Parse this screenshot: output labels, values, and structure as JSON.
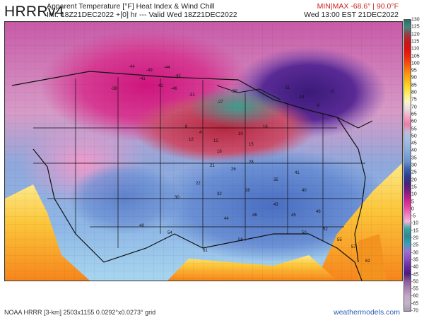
{
  "header": {
    "brand": "HRRRv4",
    "title_line1": "Apparent Temperature [°F] Heat Index & Wind Chill",
    "title_line2": "Init: 18Z21DEC2022 +[0] hr --- Valid Wed 18Z21DEC2022",
    "minmax": "MIN|MAX -68.6° | 90.0°F",
    "valid_local": "Wed 13:00 EST 21DEC2022"
  },
  "colorbar": {
    "ticks": [
      "130",
      "125",
      "120",
      "115",
      "110",
      "105",
      "100",
      "95",
      "90",
      "85",
      "80",
      "75",
      "70",
      "65",
      "60",
      "55",
      "50",
      "45",
      "40",
      "35",
      "30",
      "25",
      "20",
      "15",
      "10",
      "5",
      "0",
      "-5",
      "-10",
      "-15",
      "-20",
      "-25",
      "-30",
      "-35",
      "-40",
      "-45",
      "-50",
      "-55",
      "-60",
      "-65",
      "-70"
    ],
    "stops": [
      "#2d6b6b",
      "#3e8a7a",
      "#9a3a4a",
      "#c41818",
      "#e01010",
      "#f02a10",
      "#f6550f",
      "#fb8a10",
      "#fdb315",
      "#fed92a",
      "#fff070",
      "#fbf6c9",
      "#e9dbe0",
      "#f4a6c4",
      "#f07aa9",
      "#c4b9d6",
      "#a6bfe3",
      "#93b4de",
      "#7ea5d8",
      "#6a93ce",
      "#3e60ad",
      "#2a3e8f",
      "#4a1f7a",
      "#7a1e7e",
      "#c41f8e",
      "#e63fa0",
      "#f07abf",
      "#f6b5d8",
      "#3aa6a0",
      "#2a8a90",
      "#3aa0b8",
      "#a06fd0",
      "#8a4fc0",
      "#6a2c9e",
      "#4a1a7a",
      "#8a5a98",
      "#a882b2",
      "#c4a8c8",
      "#c2b4c8",
      "#a998b0"
    ]
  },
  "map_labels": {
    "city_temps": [
      {
        "v": "-44"
      },
      {
        "v": "-49"
      },
      {
        "v": "-41"
      },
      {
        "v": "-44"
      },
      {
        "v": "-42"
      },
      {
        "v": "-41"
      },
      {
        "v": "-46"
      },
      {
        "v": "-38"
      },
      {
        "v": "-31"
      },
      {
        "v": "-27"
      },
      {
        "v": "-20"
      },
      {
        "v": "-11"
      },
      {
        "v": "-14"
      },
      {
        "v": "-8"
      },
      {
        "v": "-3"
      },
      {
        "v": "8"
      },
      {
        "v": "4"
      },
      {
        "v": "12"
      },
      {
        "v": "12"
      },
      {
        "v": "18"
      },
      {
        "v": "10"
      },
      {
        "v": "15"
      },
      {
        "v": "16"
      },
      {
        "v": "21"
      },
      {
        "v": "26"
      },
      {
        "v": "28"
      },
      {
        "v": "22"
      },
      {
        "v": "30"
      },
      {
        "v": "32"
      },
      {
        "v": "38"
      },
      {
        "v": "35"
      },
      {
        "v": "41"
      },
      {
        "v": "40"
      },
      {
        "v": "43"
      },
      {
        "v": "45"
      },
      {
        "v": "46"
      },
      {
        "v": "44"
      },
      {
        "v": "46"
      },
      {
        "v": "52"
      },
      {
        "v": "50"
      },
      {
        "v": "55"
      },
      {
        "v": "57"
      },
      {
        "v": "62"
      },
      {
        "v": "58"
      },
      {
        "v": "61"
      },
      {
        "v": "54"
      },
      {
        "v": "48"
      }
    ]
  },
  "footer": {
    "grid_info": "NOAA HRRR [3-km] 2503x1155 0.0292°x0.0273° grid",
    "site": "weathermodels.com"
  }
}
